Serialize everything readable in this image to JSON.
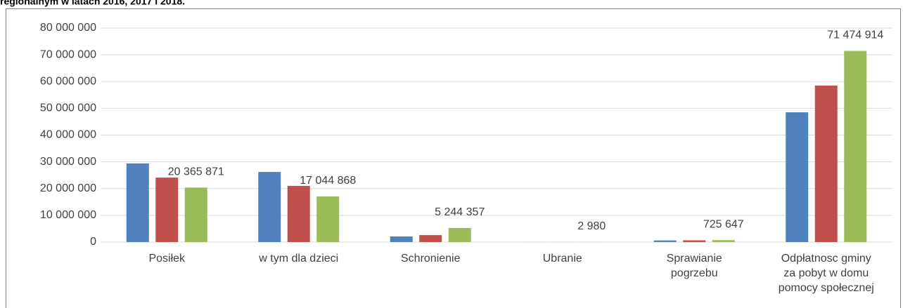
{
  "chart_data": {
    "type": "bar",
    "title": "regionalnym w latach 2016, 2017 i 2018.",
    "categories": [
      "Posiłek",
      "w tym dla dzieci",
      "Schronienie",
      "Ubranie",
      "Sprawianie pogrzebu",
      "Odpłatnosc gminy za pobyt w domu pomocy społecznej"
    ],
    "series": [
      {
        "color": "#4f81bd",
        "values": [
          29400000,
          26200000,
          2100000,
          2500,
          600000,
          48500000
        ]
      },
      {
        "color": "#c0504d",
        "values": [
          24100000,
          21000000,
          2600000,
          3000,
          650000,
          58500000
        ]
      },
      {
        "color": "#9bbb59",
        "values": [
          20365871,
          17044868,
          5244357,
          2980,
          725647,
          71474914
        ],
        "value_labels": [
          "20 365 871",
          "17 044 868",
          "5 244 357",
          "2 980",
          "725 647",
          "71 474 914"
        ]
      }
    ],
    "ylim": [
      0,
      80000000
    ],
    "yticks": [
      0,
      {
        "value": 10000000,
        "label": "10 000 000"
      },
      {
        "value": 20000000,
        "label": "20 000 000"
      },
      {
        "value": 30000000,
        "label": "30 000 000"
      },
      {
        "value": 40000000,
        "label": "40 000 000"
      },
      {
        "value": 50000000,
        "label": "50 000 000"
      },
      {
        "value": 60000000,
        "label": "60 000 000"
      },
      {
        "value": 70000000,
        "label": "70 000 000"
      },
      {
        "value": 80000000,
        "label": "80 000 000"
      }
    ],
    "grid": true
  }
}
